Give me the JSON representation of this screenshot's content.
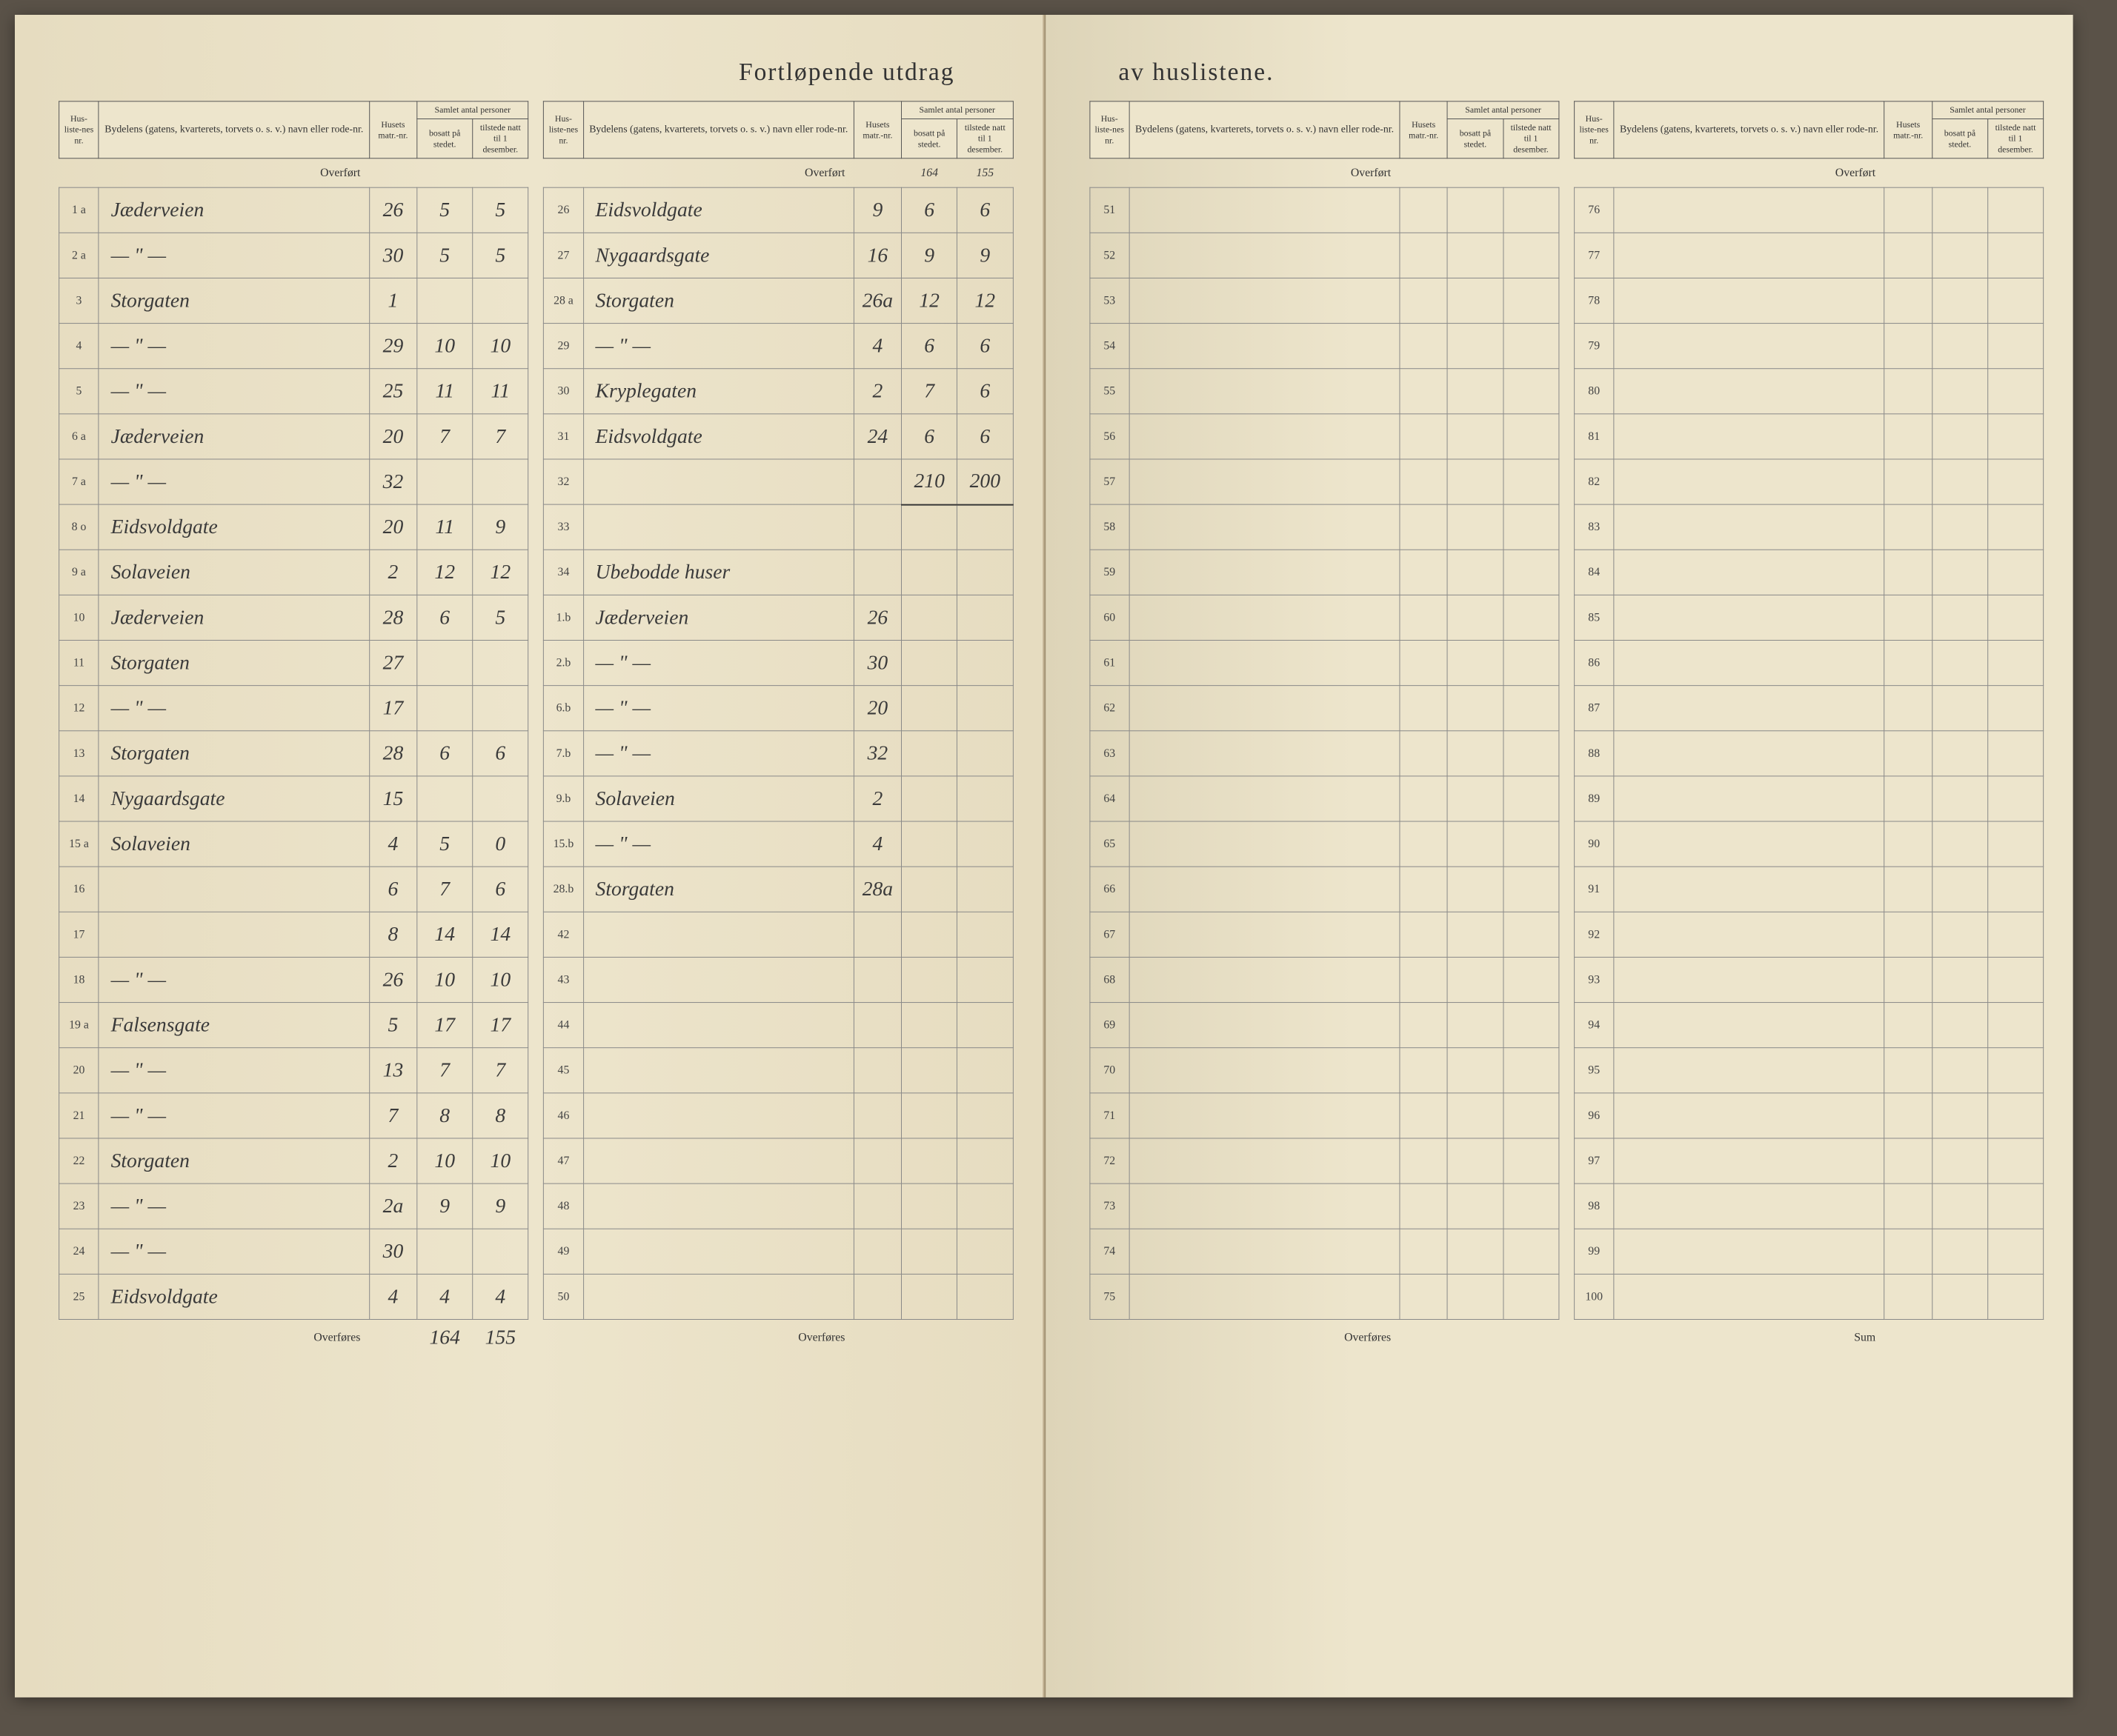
{
  "title_left": "Fortløpende utdrag",
  "title_right": "av huslistene.",
  "headers": {
    "husliste_nr": "Hus-liste-nes nr.",
    "bydelens": "Bydelens (gatens, kvarterets, torvets o. s. v.) navn eller rode-nr.",
    "husets_matr": "Husets matr.-nr.",
    "samlet": "Samlet antal personer",
    "bosatt": "bosatt på stedet.",
    "tilstede": "tilstede natt til 1 desember."
  },
  "labels": {
    "overfort": "Overført",
    "overfores": "Overføres",
    "sum": "Sum"
  },
  "left_page": {
    "section1": {
      "overfort": {
        "bosatt": "",
        "tilstede": ""
      },
      "rows": [
        {
          "nr": "1 a",
          "name": "Jæderveien",
          "hus": "26",
          "bosatt": "5",
          "tilstede": "5"
        },
        {
          "nr": "2 a",
          "name": "— \" —",
          "hus": "30",
          "bosatt": "5",
          "tilstede": "5"
        },
        {
          "nr": "3",
          "name": "Storgaten",
          "hus": "1",
          "bosatt": "",
          "tilstede": ""
        },
        {
          "nr": "4",
          "name": "— \" —",
          "hus": "29",
          "bosatt": "10",
          "tilstede": "10"
        },
        {
          "nr": "5",
          "name": "— \" —",
          "hus": "25",
          "bosatt": "11",
          "tilstede": "11"
        },
        {
          "nr": "6 a",
          "name": "Jæderveien",
          "hus": "20",
          "bosatt": "7",
          "tilstede": "7"
        },
        {
          "nr": "7 a",
          "name": "— \" —",
          "hus": "32",
          "bosatt": "",
          "tilstede": ""
        },
        {
          "nr": "8 o",
          "name": "Eidsvoldgate",
          "hus": "20",
          "bosatt": "11",
          "tilstede": "9"
        },
        {
          "nr": "9 a",
          "name": "Solaveien",
          "hus": "2",
          "bosatt": "12",
          "tilstede": "12"
        },
        {
          "nr": "10",
          "name": "Jæderveien",
          "hus": "28",
          "bosatt": "6",
          "tilstede": "5"
        },
        {
          "nr": "11",
          "name": "Storgaten",
          "hus": "27",
          "bosatt": "",
          "tilstede": ""
        },
        {
          "nr": "12",
          "name": "— \" —",
          "hus": "17",
          "bosatt": "",
          "tilstede": ""
        },
        {
          "nr": "13",
          "name": "Storgaten",
          "hus": "28",
          "bosatt": "6",
          "tilstede": "6"
        },
        {
          "nr": "14",
          "name": "Nygaardsgate",
          "hus": "15",
          "bosatt": "",
          "tilstede": ""
        },
        {
          "nr": "15 a",
          "name": "Solaveien",
          "hus": "4",
          "bosatt": "5",
          "tilstede": "0"
        },
        {
          "nr": "16",
          "name": "",
          "hus": "6",
          "bosatt": "7",
          "tilstede": "6"
        },
        {
          "nr": "17",
          "name": "",
          "hus": "8",
          "bosatt": "14",
          "tilstede": "14"
        },
        {
          "nr": "18",
          "name": "— \" —",
          "hus": "26",
          "bosatt": "10",
          "tilstede": "10"
        },
        {
          "nr": "19 a",
          "name": "Falsensgate",
          "hus": "5",
          "bosatt": "17",
          "tilstede": "17"
        },
        {
          "nr": "20",
          "name": "— \" —",
          "hus": "13",
          "bosatt": "7",
          "tilstede": "7"
        },
        {
          "nr": "21",
          "name": "— \" —",
          "hus": "7",
          "bosatt": "8",
          "tilstede": "8"
        },
        {
          "nr": "22",
          "name": "Storgaten",
          "hus": "2",
          "bosatt": "10",
          "tilstede": "10"
        },
        {
          "nr": "23",
          "name": "— \" —",
          "hus": "2a",
          "bosatt": "9",
          "tilstede": "9"
        },
        {
          "nr": "24",
          "name": "— \" —",
          "hus": "30",
          "bosatt": "",
          "tilstede": ""
        },
        {
          "nr": "25",
          "name": "Eidsvoldgate",
          "hus": "4",
          "bosatt": "4",
          "tilstede": "4"
        }
      ],
      "overfores": {
        "bosatt": "164",
        "tilstede": "155"
      }
    },
    "section2": {
      "overfort": {
        "bosatt": "164",
        "tilstede": "155"
      },
      "rows": [
        {
          "nr": "26",
          "name": "Eidsvoldgate",
          "hus": "9",
          "bosatt": "6",
          "tilstede": "6"
        },
        {
          "nr": "27",
          "name": "Nygaardsgate",
          "hus": "16",
          "bosatt": "9",
          "tilstede": "9"
        },
        {
          "nr": "28 a",
          "name": "Storgaten",
          "hus": "26a",
          "bosatt": "12",
          "tilstede": "12"
        },
        {
          "nr": "29",
          "name": "— \" —",
          "hus": "4",
          "bosatt": "6",
          "tilstede": "6"
        },
        {
          "nr": "30",
          "name": "Kryplegaten",
          "hus": "2",
          "bosatt": "7",
          "tilstede": "6"
        },
        {
          "nr": "31",
          "name": "Eidsvoldgate",
          "hus": "24",
          "bosatt": "6",
          "tilstede": "6"
        },
        {
          "nr": "32",
          "name": "",
          "hus": "",
          "bosatt": "210",
          "tilstede": "200"
        },
        {
          "nr": "33",
          "name": "",
          "hus": "",
          "bosatt": "",
          "tilstede": ""
        },
        {
          "nr": "34",
          "name": "Ubebodde huser",
          "hus": "",
          "bosatt": "",
          "tilstede": ""
        },
        {
          "nr": "1.b",
          "name": "Jæderveien",
          "hus": "26",
          "bosatt": "",
          "tilstede": ""
        },
        {
          "nr": "2.b",
          "name": "— \" —",
          "hus": "30",
          "bosatt": "",
          "tilstede": ""
        },
        {
          "nr": "6.b",
          "name": "— \" —",
          "hus": "20",
          "bosatt": "",
          "tilstede": ""
        },
        {
          "nr": "7.b",
          "name": "— \" —",
          "hus": "32",
          "bosatt": "",
          "tilstede": ""
        },
        {
          "nr": "9.b",
          "name": "Solaveien",
          "hus": "2",
          "bosatt": "",
          "tilstede": ""
        },
        {
          "nr": "15.b",
          "name": "— \" —",
          "hus": "4",
          "bosatt": "",
          "tilstede": ""
        },
        {
          "nr": "28.b",
          "name": "Storgaten",
          "hus": "28a",
          "bosatt": "",
          "tilstede": ""
        },
        {
          "nr": "42",
          "name": "",
          "hus": "",
          "bosatt": "",
          "tilstede": ""
        },
        {
          "nr": "43",
          "name": "",
          "hus": "",
          "bosatt": "",
          "tilstede": ""
        },
        {
          "nr": "44",
          "name": "",
          "hus": "",
          "bosatt": "",
          "tilstede": ""
        },
        {
          "nr": "45",
          "name": "",
          "hus": "",
          "bosatt": "",
          "tilstede": ""
        },
        {
          "nr": "46",
          "name": "",
          "hus": "",
          "bosatt": "",
          "tilstede": ""
        },
        {
          "nr": "47",
          "name": "",
          "hus": "",
          "bosatt": "",
          "tilstede": ""
        },
        {
          "nr": "48",
          "name": "",
          "hus": "",
          "bosatt": "",
          "tilstede": ""
        },
        {
          "nr": "49",
          "name": "",
          "hus": "",
          "bosatt": "",
          "tilstede": ""
        },
        {
          "nr": "50",
          "name": "",
          "hus": "",
          "bosatt": "",
          "tilstede": ""
        }
      ],
      "overfores": {
        "bosatt": "",
        "tilstede": ""
      }
    }
  },
  "right_page": {
    "section1": {
      "overfort": {
        "bosatt": "",
        "tilstede": ""
      },
      "rows": [
        {
          "nr": "51",
          "name": "",
          "hus": "",
          "bosatt": "",
          "tilstede": ""
        },
        {
          "nr": "52",
          "name": "",
          "hus": "",
          "bosatt": "",
          "tilstede": ""
        },
        {
          "nr": "53",
          "name": "",
          "hus": "",
          "bosatt": "",
          "tilstede": ""
        },
        {
          "nr": "54",
          "name": "",
          "hus": "",
          "bosatt": "",
          "tilstede": ""
        },
        {
          "nr": "55",
          "name": "",
          "hus": "",
          "bosatt": "",
          "tilstede": ""
        },
        {
          "nr": "56",
          "name": "",
          "hus": "",
          "bosatt": "",
          "tilstede": ""
        },
        {
          "nr": "57",
          "name": "",
          "hus": "",
          "bosatt": "",
          "tilstede": ""
        },
        {
          "nr": "58",
          "name": "",
          "hus": "",
          "bosatt": "",
          "tilstede": ""
        },
        {
          "nr": "59",
          "name": "",
          "hus": "",
          "bosatt": "",
          "tilstede": ""
        },
        {
          "nr": "60",
          "name": "",
          "hus": "",
          "bosatt": "",
          "tilstede": ""
        },
        {
          "nr": "61",
          "name": "",
          "hus": "",
          "bosatt": "",
          "tilstede": ""
        },
        {
          "nr": "62",
          "name": "",
          "hus": "",
          "bosatt": "",
          "tilstede": ""
        },
        {
          "nr": "63",
          "name": "",
          "hus": "",
          "bosatt": "",
          "tilstede": ""
        },
        {
          "nr": "64",
          "name": "",
          "hus": "",
          "bosatt": "",
          "tilstede": ""
        },
        {
          "nr": "65",
          "name": "",
          "hus": "",
          "bosatt": "",
          "tilstede": ""
        },
        {
          "nr": "66",
          "name": "",
          "hus": "",
          "bosatt": "",
          "tilstede": ""
        },
        {
          "nr": "67",
          "name": "",
          "hus": "",
          "bosatt": "",
          "tilstede": ""
        },
        {
          "nr": "68",
          "name": "",
          "hus": "",
          "bosatt": "",
          "tilstede": ""
        },
        {
          "nr": "69",
          "name": "",
          "hus": "",
          "bosatt": "",
          "tilstede": ""
        },
        {
          "nr": "70",
          "name": "",
          "hus": "",
          "bosatt": "",
          "tilstede": ""
        },
        {
          "nr": "71",
          "name": "",
          "hus": "",
          "bosatt": "",
          "tilstede": ""
        },
        {
          "nr": "72",
          "name": "",
          "hus": "",
          "bosatt": "",
          "tilstede": ""
        },
        {
          "nr": "73",
          "name": "",
          "hus": "",
          "bosatt": "",
          "tilstede": ""
        },
        {
          "nr": "74",
          "name": "",
          "hus": "",
          "bosatt": "",
          "tilstede": ""
        },
        {
          "nr": "75",
          "name": "",
          "hus": "",
          "bosatt": "",
          "tilstede": ""
        }
      ],
      "overfores": {
        "bosatt": "",
        "tilstede": ""
      }
    },
    "section2": {
      "overfort": {
        "bosatt": "",
        "tilstede": ""
      },
      "rows": [
        {
          "nr": "76",
          "name": "",
          "hus": "",
          "bosatt": "",
          "tilstede": ""
        },
        {
          "nr": "77",
          "name": "",
          "hus": "",
          "bosatt": "",
          "tilstede": ""
        },
        {
          "nr": "78",
          "name": "",
          "hus": "",
          "bosatt": "",
          "tilstede": ""
        },
        {
          "nr": "79",
          "name": "",
          "hus": "",
          "bosatt": "",
          "tilstede": ""
        },
        {
          "nr": "80",
          "name": "",
          "hus": "",
          "bosatt": "",
          "tilstede": ""
        },
        {
          "nr": "81",
          "name": "",
          "hus": "",
          "bosatt": "",
          "tilstede": ""
        },
        {
          "nr": "82",
          "name": "",
          "hus": "",
          "bosatt": "",
          "tilstede": ""
        },
        {
          "nr": "83",
          "name": "",
          "hus": "",
          "bosatt": "",
          "tilstede": ""
        },
        {
          "nr": "84",
          "name": "",
          "hus": "",
          "bosatt": "",
          "tilstede": ""
        },
        {
          "nr": "85",
          "name": "",
          "hus": "",
          "bosatt": "",
          "tilstede": ""
        },
        {
          "nr": "86",
          "name": "",
          "hus": "",
          "bosatt": "",
          "tilstede": ""
        },
        {
          "nr": "87",
          "name": "",
          "hus": "",
          "bosatt": "",
          "tilstede": ""
        },
        {
          "nr": "88",
          "name": "",
          "hus": "",
          "bosatt": "",
          "tilstede": ""
        },
        {
          "nr": "89",
          "name": "",
          "hus": "",
          "bosatt": "",
          "tilstede": ""
        },
        {
          "nr": "90",
          "name": "",
          "hus": "",
          "bosatt": "",
          "tilstede": ""
        },
        {
          "nr": "91",
          "name": "",
          "hus": "",
          "bosatt": "",
          "tilstede": ""
        },
        {
          "nr": "92",
          "name": "",
          "hus": "",
          "bosatt": "",
          "tilstede": ""
        },
        {
          "nr": "93",
          "name": "",
          "hus": "",
          "bosatt": "",
          "tilstede": ""
        },
        {
          "nr": "94",
          "name": "",
          "hus": "",
          "bosatt": "",
          "tilstede": ""
        },
        {
          "nr": "95",
          "name": "",
          "hus": "",
          "bosatt": "",
          "tilstede": ""
        },
        {
          "nr": "96",
          "name": "",
          "hus": "",
          "bosatt": "",
          "tilstede": ""
        },
        {
          "nr": "97",
          "name": "",
          "hus": "",
          "bosatt": "",
          "tilstede": ""
        },
        {
          "nr": "98",
          "name": "",
          "hus": "",
          "bosatt": "",
          "tilstede": ""
        },
        {
          "nr": "99",
          "name": "",
          "hus": "",
          "bosatt": "",
          "tilstede": ""
        },
        {
          "nr": "100",
          "name": "",
          "hus": "",
          "bosatt": "",
          "tilstede": ""
        }
      ],
      "sum": {
        "bosatt": "",
        "tilstede": ""
      }
    }
  },
  "colors": {
    "paper": "#ede5cc",
    "ink": "#333333",
    "cursive": "#3a3a3a",
    "border": "#555555",
    "border_light": "#888888"
  }
}
